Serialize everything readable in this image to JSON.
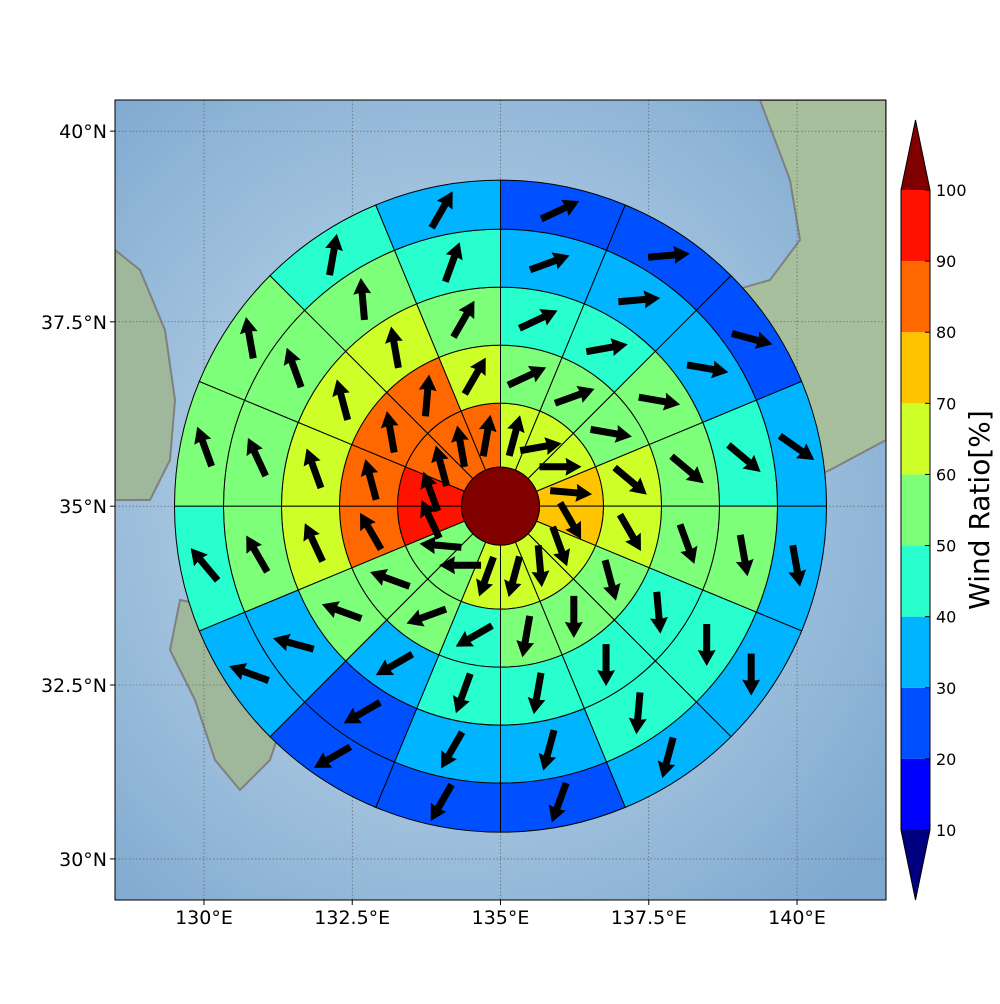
{
  "chart_data": {
    "type": "polar_grid_map",
    "projection": "mercator",
    "xlim": [
      128.5,
      141.5
    ],
    "ylim": [
      29.4,
      40.4
    ],
    "xticks": [
      {
        "value": 130,
        "label": "130°E"
      },
      {
        "value": 132.5,
        "label": "132.5°E"
      },
      {
        "value": 135,
        "label": "135°E"
      },
      {
        "value": 137.5,
        "label": "137.5°E"
      },
      {
        "value": 140,
        "label": "140°E"
      }
    ],
    "yticks": [
      {
        "value": 30,
        "label": "30°N"
      },
      {
        "value": 32.5,
        "label": "32.5°N"
      },
      {
        "value": 35,
        "label": "35°N"
      },
      {
        "value": 37.5,
        "label": "37.5°N"
      },
      {
        "value": 40,
        "label": "40°N"
      }
    ],
    "grid": true,
    "center_lon": 135,
    "center_lat": 35,
    "center_value": 105,
    "rings": [
      {
        "values": [
          65,
          65,
          65,
          75,
          75,
          65,
          65,
          65,
          65,
          55,
          55,
          95,
          95,
          85,
          85,
          85
        ],
        "directions": [
          15,
          80,
          90,
          95,
          150,
          160,
          175,
          195,
          200,
          270,
          275,
          335,
          340,
          345,
          350,
          10
        ]
      },
      {
        "values": [
          55,
          55,
          55,
          65,
          65,
          55,
          55,
          55,
          45,
          55,
          55,
          85,
          85,
          85,
          85,
          65
        ],
        "directions": [
          65,
          70,
          100,
          130,
          150,
          165,
          180,
          190,
          240,
          250,
          290,
          330,
          345,
          350,
          5,
          30
        ]
      },
      {
        "values": [
          45,
          45,
          55,
          55,
          55,
          45,
          45,
          45,
          45,
          35,
          55,
          65,
          65,
          65,
          65,
          55
        ],
        "directions": [
          65,
          80,
          100,
          130,
          160,
          175,
          180,
          190,
          200,
          240,
          290,
          335,
          340,
          345,
          350,
          30
        ]
      },
      {
        "values": [
          35,
          35,
          35,
          45,
          55,
          45,
          45,
          35,
          35,
          25,
          35,
          55,
          55,
          55,
          55,
          45
        ],
        "directions": [
          70,
          85,
          100,
          130,
          170,
          180,
          185,
          195,
          210,
          240,
          285,
          330,
          335,
          340,
          355,
          20
        ]
      },
      {
        "values": [
          25,
          25,
          22,
          35,
          35,
          35,
          35,
          25,
          25,
          25,
          35,
          45,
          55,
          55,
          45,
          35
        ],
        "directions": [
          65,
          85,
          105,
          125,
          170,
          180,
          195,
          200,
          210,
          240,
          290,
          320,
          340,
          350,
          10,
          30
        ]
      }
    ],
    "colorbar": {
      "label": "Wind Ratio[%]",
      "ticks": [
        10,
        20,
        30,
        40,
        50,
        60,
        70,
        80,
        90,
        100
      ],
      "colors": [
        "#0000ff",
        "#0050ff",
        "#00b4ff",
        "#29ffce",
        "#7dff7a",
        "#ceff29",
        "#ffc400",
        "#ff6800",
        "#ff1300"
      ],
      "over_color": "#800000",
      "under_color": "#000080"
    }
  }
}
